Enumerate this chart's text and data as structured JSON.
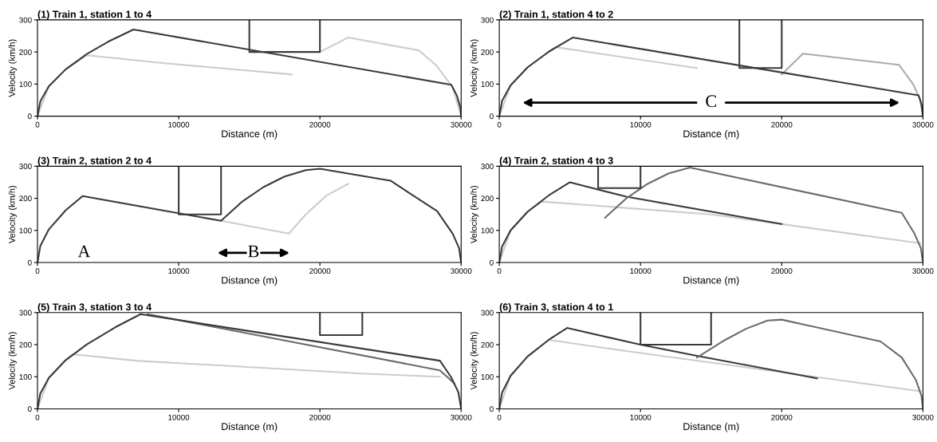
{
  "chart_data": [
    {
      "type": "line",
      "title": "(1) Train 1, station 1 to 4",
      "xlabel": "Distance (m)",
      "ylabel": "Velocity (km/h)",
      "xlim": [
        0,
        30000
      ],
      "ylim": [
        0,
        300
      ],
      "xticks": [
        0,
        10000,
        20000,
        30000
      ],
      "yticks": [
        0,
        100,
        200,
        300
      ],
      "grid": false,
      "series": [
        {
          "color": "#cccccc",
          "x": [
            0,
            800,
            2000,
            3500,
            9000,
            18000
          ],
          "values": [
            0,
            93,
            146,
            190,
            165,
            130
          ]
        },
        {
          "color": "#cccccc",
          "x": [
            20000,
            22000,
            27000,
            28200,
            29400,
            30000
          ],
          "values": [
            200,
            245,
            205,
            160,
            90,
            0
          ]
        },
        {
          "color": "#3a3a3a",
          "x": [
            0,
            200,
            800,
            2000,
            3500,
            5000,
            6800,
            29300,
            29700,
            29950,
            30000
          ],
          "values": [
            0,
            46,
            93,
            146,
            194,
            232,
            270,
            98,
            64,
            26,
            0
          ]
        },
        {
          "color": "#3a3a3a",
          "x": [
            15000,
            15000,
            20000,
            20000
          ],
          "values": [
            300,
            200,
            200,
            300
          ]
        }
      ]
    },
    {
      "type": "line",
      "title": "(2) Train 1, station 4 to 2",
      "xlabel": "Distance (m)",
      "ylabel": "Velocity (km/h)",
      "xlim": [
        0,
        30000
      ],
      "ylim": [
        0,
        300
      ],
      "xticks": [
        0,
        10000,
        20000,
        30000
      ],
      "yticks": [
        0,
        100,
        200,
        300
      ],
      "grid": false,
      "annotations": [
        "C"
      ],
      "series": [
        {
          "color": "#cccccc",
          "x": [
            0,
            800,
            2000,
            4000,
            14000
          ],
          "values": [
            0,
            96,
            152,
            215,
            150
          ]
        },
        {
          "color": "#aaaaaa",
          "x": [
            20000,
            21500,
            28300,
            29300,
            29800,
            30000
          ],
          "values": [
            130,
            195,
            160,
            100,
            52,
            0
          ]
        },
        {
          "color": "#3a3a3a",
          "x": [
            0,
            200,
            800,
            2000,
            3500,
            5200,
            29690,
            29900,
            30000
          ],
          "values": [
            0,
            48,
            96,
            152,
            201,
            245,
            65,
            37,
            0
          ]
        },
        {
          "color": "#3a3a3a",
          "x": [
            17000,
            17000,
            20000,
            20000
          ],
          "values": [
            300,
            150,
            150,
            300
          ]
        }
      ]
    },
    {
      "type": "line",
      "title": "(3) Train 2, station 2 to 4",
      "xlabel": "Distance (m)",
      "ylabel": "Velocity (km/h)",
      "xlim": [
        0,
        30000
      ],
      "ylim": [
        0,
        300
      ],
      "xticks": [
        0,
        10000,
        20000,
        30000
      ],
      "yticks": [
        0,
        100,
        200,
        300
      ],
      "grid": false,
      "annotations": [
        "A",
        "B"
      ],
      "series": [
        {
          "color": "#cccccc",
          "x": [
            13000,
            17800,
            19000,
            20500,
            22000
          ],
          "values": [
            130,
            90,
            150,
            210,
            245
          ]
        },
        {
          "color": "#3a3a3a",
          "x": [
            0,
            200,
            800,
            2000,
            3200,
            13000,
            14500,
            16000,
            17500,
            19000,
            20000,
            25000,
            28300,
            29400,
            29850,
            30000
          ],
          "values": [
            0,
            51,
            103,
            163,
            207,
            130,
            190,
            235,
            268,
            288,
            292,
            255,
            160,
            90,
            45,
            0
          ]
        },
        {
          "color": "#3a3a3a",
          "x": [
            10000,
            10000,
            13000,
            13000
          ],
          "values": [
            300,
            150,
            150,
            300
          ]
        }
      ]
    },
    {
      "type": "line",
      "title": "(4) Train 2, station 4 to 3",
      "xlabel": "Distance (m)",
      "ylabel": "Velocity (km/h)",
      "xlim": [
        0,
        30000
      ],
      "ylim": [
        0,
        300
      ],
      "xticks": [
        0,
        10000,
        20000,
        30000
      ],
      "yticks": [
        0,
        100,
        200,
        300
      ],
      "grid": false,
      "series": [
        {
          "color": "#cccccc",
          "x": [
            0,
            800,
            2000,
            3000,
            15000,
            29800
          ],
          "values": [
            0,
            100,
            158,
            190,
            150,
            60
          ]
        },
        {
          "color": "#3a3a3a",
          "x": [
            0,
            200,
            800,
            2000,
            3500,
            5000,
            9000,
            20000
          ],
          "values": [
            0,
            50,
            100,
            158,
            209,
            250,
            205,
            120
          ]
        },
        {
          "color": "#6a6a6a",
          "x": [
            7500,
            9000,
            10500,
            12000,
            13500,
            28500,
            29400,
            29850,
            30000
          ],
          "values": [
            140,
            200,
            245,
            278,
            296,
            155,
            90,
            45,
            0
          ]
        },
        {
          "color": "#3a3a3a",
          "x": [
            7000,
            7000,
            10000,
            10000
          ],
          "values": [
            300,
            232,
            232,
            300
          ]
        }
      ]
    },
    {
      "type": "line",
      "title": "(5) Train 3, station 3 to 4",
      "xlabel": "Distance (m)",
      "ylabel": "Velocity (km/h)",
      "xlim": [
        0,
        30000
      ],
      "ylim": [
        0,
        300
      ],
      "xticks": [
        0,
        10000,
        20000,
        30000
      ],
      "yticks": [
        0,
        100,
        200,
        300
      ],
      "grid": false,
      "series": [
        {
          "color": "#cccccc",
          "x": [
            0,
            800,
            2000,
            2500,
            7000,
            23000,
            28500
          ],
          "values": [
            0,
            96,
            152,
            170,
            150,
            110,
            100
          ]
        },
        {
          "color": "#6a6a6a",
          "x": [
            7800,
            28500,
            29500
          ],
          "values": [
            295,
            120,
            80
          ]
        },
        {
          "color": "#3a3a3a",
          "x": [
            0,
            200,
            800,
            2000,
            3500,
            5500,
            7300,
            28500,
            29300,
            29800,
            30000
          ],
          "values": [
            0,
            48,
            96,
            152,
            201,
            254,
            295,
            150,
            98,
            52,
            0
          ]
        },
        {
          "color": "#3a3a3a",
          "x": [
            20000,
            20000,
            23000,
            23000
          ],
          "values": [
            300,
            230,
            230,
            300
          ]
        }
      ]
    },
    {
      "type": "line",
      "title": "(6) Train 3, station 4 to 1",
      "xlabel": "Distance (m)",
      "ylabel": "Velocity (km/h)",
      "xlim": [
        0,
        30000
      ],
      "ylim": [
        0,
        300
      ],
      "xticks": [
        0,
        10000,
        20000,
        30000
      ],
      "yticks": [
        0,
        100,
        200,
        300
      ],
      "grid": false,
      "series": [
        {
          "color": "#cccccc",
          "x": [
            0,
            800,
            2000,
            3500,
            9000,
            29800
          ],
          "values": [
            0,
            103,
            163,
            215,
            180,
            55
          ]
        },
        {
          "color": "#3a3a3a",
          "x": [
            0,
            200,
            800,
            2000,
            3500,
            4800,
            10000,
            14000,
            22500
          ],
          "values": [
            0,
            51,
            103,
            163,
            215,
            252,
            200,
            165,
            95
          ]
        },
        {
          "color": "#6a6a6a",
          "x": [
            14000,
            16000,
            17500,
            19000,
            20000,
            27000,
            28500,
            29500,
            29900,
            30000
          ],
          "values": [
            160,
            215,
            250,
            275,
            278,
            210,
            160,
            90,
            40,
            0
          ]
        },
        {
          "color": "#3a3a3a",
          "x": [
            10000,
            10000,
            15000,
            15000
          ],
          "values": [
            300,
            200,
            200,
            300
          ]
        }
      ]
    }
  ]
}
